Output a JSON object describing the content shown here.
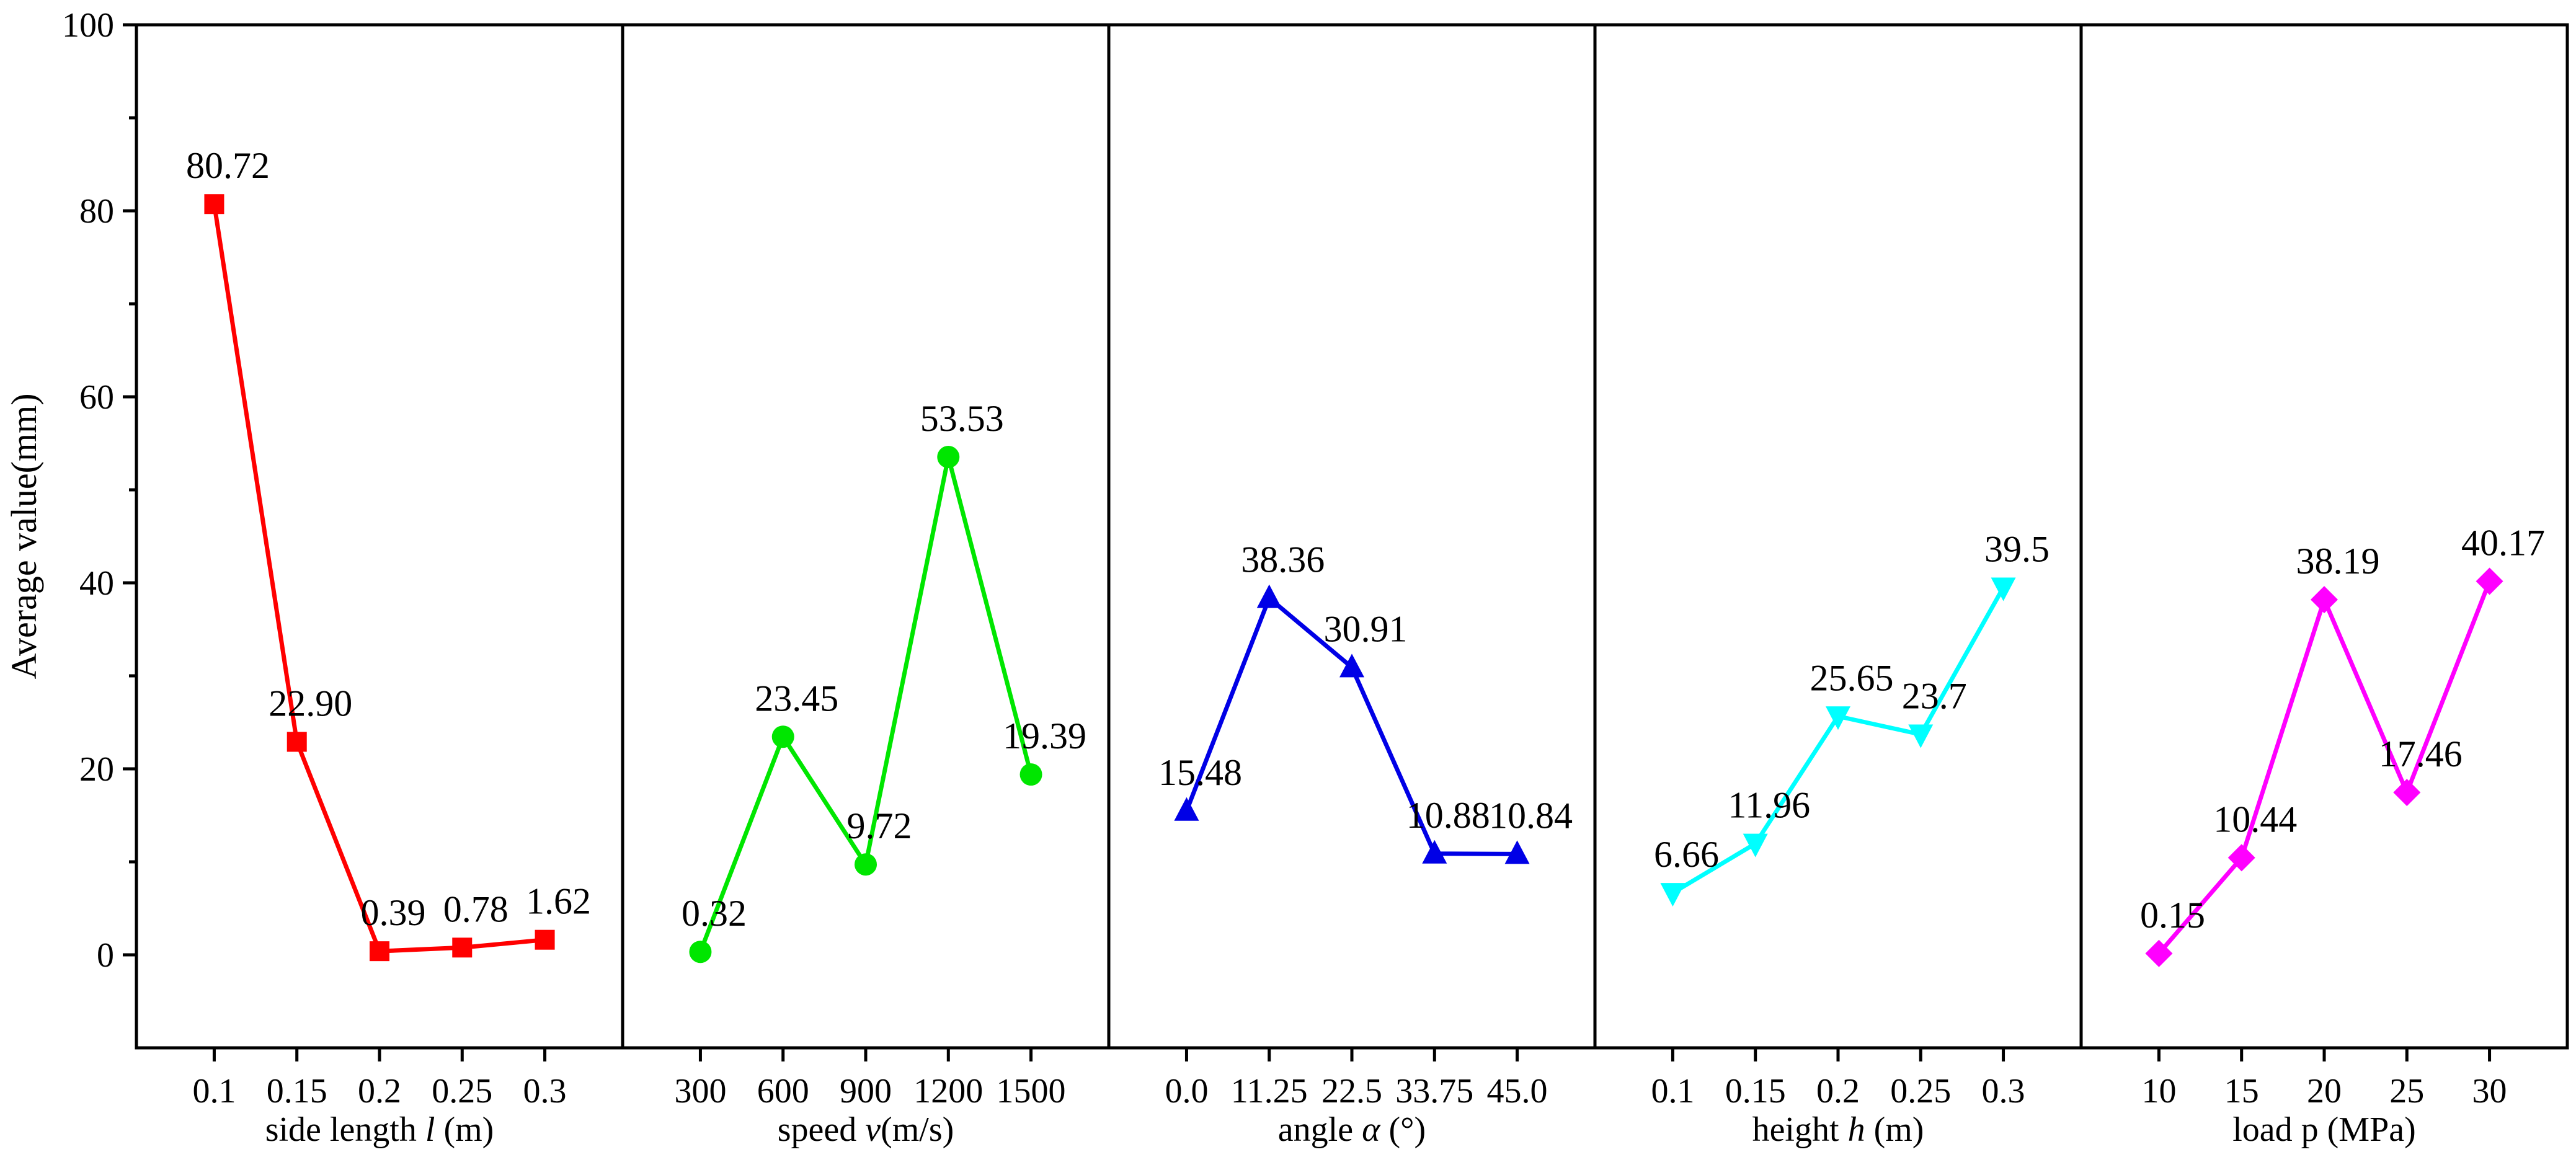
{
  "chart_data": {
    "type": "line",
    "ylabel": "Average value(mm)",
    "ylim": [
      -10,
      100
    ],
    "yticks": [
      0,
      20,
      40,
      60,
      80,
      100
    ],
    "yticklabels": [
      "0",
      "20",
      "40",
      "60",
      "80",
      "100"
    ],
    "panels": [
      {
        "name": "side-length",
        "xlabel_parts": [
          "side length ",
          "l",
          " (m)"
        ],
        "categories": [
          "0.1",
          "0.15",
          "0.2",
          "0.25",
          "0.3"
        ],
        "values": [
          80.72,
          22.9,
          0.39,
          0.78,
          1.62
        ],
        "value_labels": [
          "80.72",
          "22.90",
          "0.39",
          "0.78",
          "1.62"
        ],
        "color": "#ff0000",
        "marker": "square"
      },
      {
        "name": "speed",
        "xlabel_parts": [
          "speed ",
          "v",
          "(m/s)"
        ],
        "categories": [
          "300",
          "600",
          "900",
          "1200",
          "1500"
        ],
        "values": [
          0.32,
          23.45,
          9.72,
          53.53,
          19.39
        ],
        "value_labels": [
          "0.32",
          "23.45",
          "9.72",
          "53.53",
          "19.39"
        ],
        "color": "#00e600",
        "marker": "circle"
      },
      {
        "name": "angle",
        "xlabel_parts": [
          "angle ",
          "α",
          " (°)"
        ],
        "categories": [
          "0.0",
          "11.25",
          "22.5",
          "33.75",
          "45.0"
        ],
        "values": [
          15.48,
          38.36,
          30.91,
          10.88,
          10.84
        ],
        "value_labels": [
          "15.48",
          "38.36",
          "30.91",
          "10.88",
          "10.84"
        ],
        "color": "#0000e6",
        "marker": "triangle-up"
      },
      {
        "name": "height",
        "xlabel_parts": [
          "height ",
          "h",
          " (m)"
        ],
        "categories": [
          "0.1",
          "0.15",
          "0.2",
          "0.25",
          "0.3"
        ],
        "values": [
          6.66,
          11.96,
          25.65,
          23.7,
          39.5
        ],
        "value_labels": [
          "6.66",
          "11.96",
          "25.65",
          "23.7",
          "39.5"
        ],
        "color": "#00ffff",
        "marker": "triangle-down"
      },
      {
        "name": "load",
        "xlabel_parts": [
          "load p (MPa)",
          "",
          ""
        ],
        "categories": [
          "10",
          "15",
          "20",
          "25",
          "30"
        ],
        "values": [
          0.15,
          10.44,
          38.19,
          17.46,
          40.17
        ],
        "value_labels": [
          "0.15",
          "10.44",
          "38.19",
          "17.46",
          "40.17"
        ],
        "color": "#ff00ff",
        "marker": "diamond"
      }
    ]
  }
}
